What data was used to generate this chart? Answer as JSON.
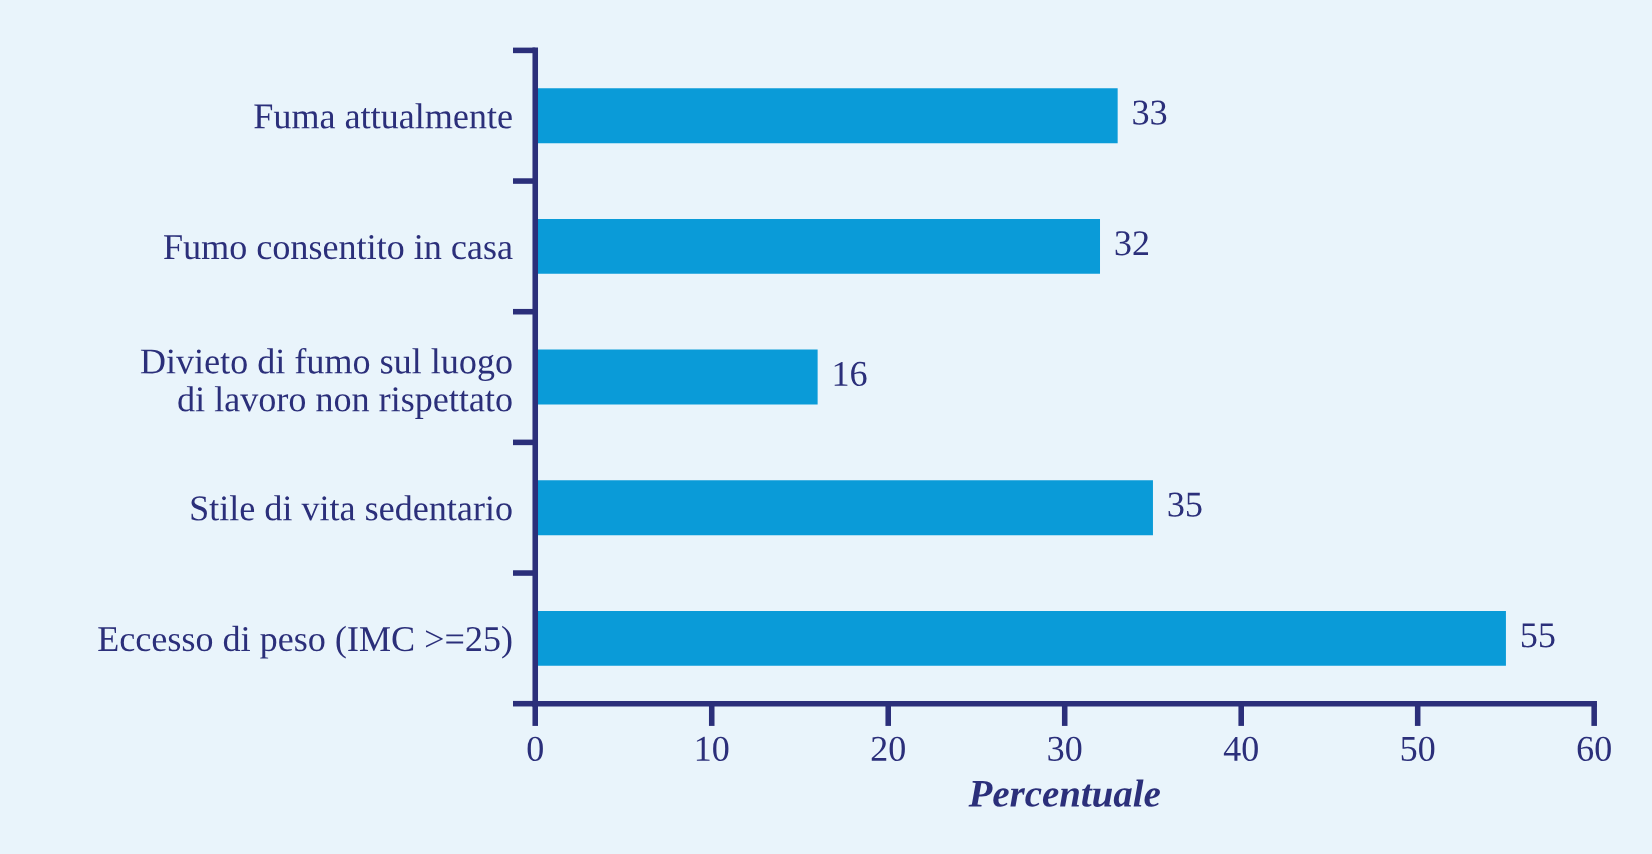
{
  "chart_data": {
    "type": "bar",
    "orientation": "horizontal",
    "xlabel": "Percentuale",
    "categories": [
      "Fuma attualmente",
      "Fumo consentito in casa",
      "Divieto di fumo sul luogo\ndi lavoro non rispettato",
      "Stile di vita sedentario",
      "Eccesso di peso (IMC >=25)"
    ],
    "values": [
      33,
      32,
      16,
      35,
      55
    ],
    "color": "#0a9bd8",
    "xlim": [
      0,
      60
    ],
    "xticks": [
      0,
      10,
      20,
      30,
      40,
      50,
      60
    ],
    "grid": false,
    "data_labels": true
  }
}
